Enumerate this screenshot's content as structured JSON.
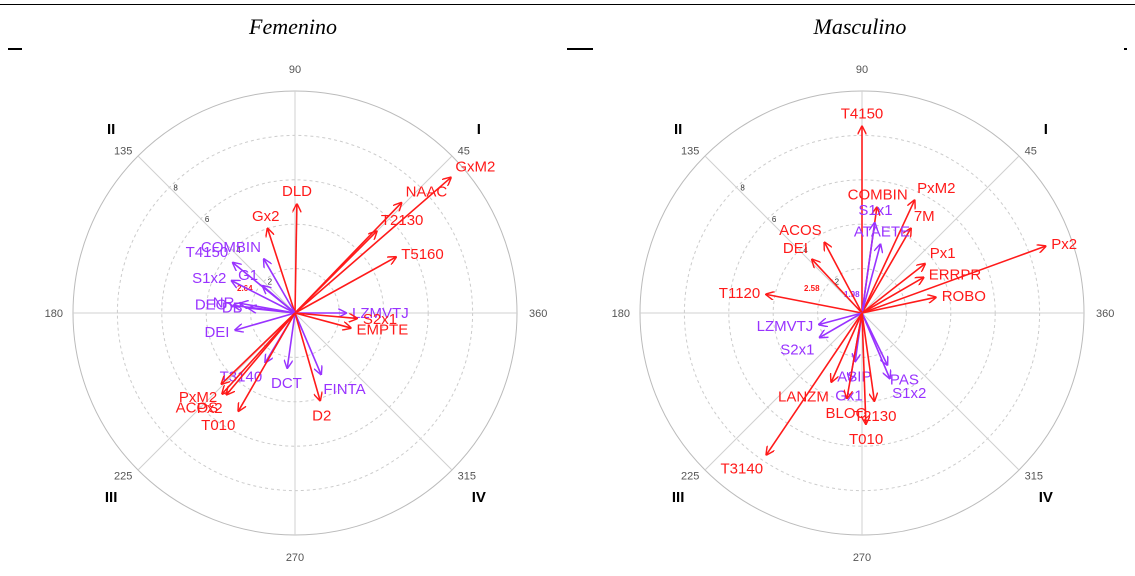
{
  "chart_data": [
    {
      "type": "polar-vector",
      "title": "Femenino",
      "angle_ticks": [
        "90",
        "135",
        "180",
        "225",
        "270",
        "315",
        "360",
        "45"
      ],
      "radial_ticks": [
        "2",
        "4",
        "6",
        "8"
      ],
      "quadrants": [
        "I",
        "II",
        "III",
        "IV"
      ],
      "center_values": [
        "2.64"
      ],
      "series_colors": {
        "red": "#ff1a1a",
        "purple": "#9933ff"
      },
      "vectors": [
        {
          "label": "DLD",
          "angle": 89,
          "length": 4.9,
          "color": "red"
        },
        {
          "label": "GxM2",
          "angle": 41,
          "length": 9.3,
          "color": "red"
        },
        {
          "label": "NAAC",
          "angle": 46,
          "length": 6.9,
          "color": "red"
        },
        {
          "label": "T2130",
          "angle": 45,
          "length": 5.2,
          "color": "red"
        },
        {
          "label": "T5160",
          "angle": 29,
          "length": 5.2,
          "color": "red"
        },
        {
          "label": "Gx2",
          "angle": 108,
          "length": 4.0,
          "color": "red"
        },
        {
          "label": "COMBIN",
          "angle": 120,
          "length": 2.8,
          "color": "purple"
        },
        {
          "label": "T4150",
          "angle": 141,
          "length": 3.6,
          "color": "purple"
        },
        {
          "label": "S1x2",
          "angle": 153,
          "length": 3.2,
          "color": "purple"
        },
        {
          "label": "G1",
          "angle": 140,
          "length": 1.9,
          "color": "purple"
        },
        {
          "label": "DEO",
          "angle": 173,
          "length": 2.8,
          "color": "purple"
        },
        {
          "label": "NR",
          "angle": 170,
          "length": 2.5,
          "color": "purple"
        },
        {
          "label": "DB",
          "angle": 174,
          "length": 2.1,
          "color": "purple"
        },
        {
          "label": "DEI",
          "angle": 196,
          "length": 2.8,
          "color": "purple"
        },
        {
          "label": "T3140",
          "angle": 239,
          "length": 2.6,
          "color": "purple"
        },
        {
          "label": "DCT",
          "angle": 262,
          "length": 2.5,
          "color": "purple"
        },
        {
          "label": "FINTA",
          "angle": 293,
          "length": 3.0,
          "color": "purple"
        },
        {
          "label": "D2",
          "angle": 286,
          "length": 4.1,
          "color": "red"
        },
        {
          "label": "LZMVTJ",
          "angle": 0,
          "length": 2.3,
          "color": "purple"
        },
        {
          "label": "S2x1",
          "angle": 355,
          "length": 2.8,
          "color": "red"
        },
        {
          "label": "EMPTE",
          "angle": 345,
          "length": 2.6,
          "color": "red"
        },
        {
          "label": "PxM2",
          "angle": 224,
          "length": 4.6,
          "color": "red"
        },
        {
          "label": "Px2",
          "angle": 230,
          "length": 4.8,
          "color": "red"
        },
        {
          "label": "ACOS",
          "angle": 228,
          "length": 4.9,
          "color": "red"
        },
        {
          "label": "T010",
          "angle": 240,
          "length": 5.1,
          "color": "red"
        }
      ]
    },
    {
      "type": "polar-vector",
      "title": "Masculino",
      "angle_ticks": [
        "90",
        "135",
        "180",
        "225",
        "270",
        "315",
        "360",
        "45"
      ],
      "radial_ticks": [
        "2",
        "4",
        "6",
        "8"
      ],
      "quadrants": [
        "I",
        "II",
        "III",
        "IV"
      ],
      "center_values": [
        "2.58",
        "1.98"
      ],
      "series_colors": {
        "red": "#ff1a1a",
        "purple": "#9933ff"
      },
      "vectors": [
        {
          "label": "T4150",
          "angle": 90,
          "length": 8.4,
          "color": "red"
        },
        {
          "label": "COMBIN",
          "angle": 82,
          "length": 4.8,
          "color": "red"
        },
        {
          "label": "PxM2",
          "angle": 65,
          "length": 5.6,
          "color": "red"
        },
        {
          "label": "7M",
          "angle": 60,
          "length": 4.4,
          "color": "red"
        },
        {
          "label": "S1x1",
          "angle": 82,
          "length": 4.1,
          "color": "purple"
        },
        {
          "label": "ATAETE",
          "angle": 75,
          "length": 3.2,
          "color": "purple"
        },
        {
          "label": "Px1",
          "angle": 38,
          "length": 3.6,
          "color": "red"
        },
        {
          "label": "Px2",
          "angle": 20,
          "length": 8.8,
          "color": "red"
        },
        {
          "label": "ERRPR",
          "angle": 30,
          "length": 3.2,
          "color": "red"
        },
        {
          "label": "ROBO",
          "angle": 12,
          "length": 3.4,
          "color": "red"
        },
        {
          "label": "ACOS",
          "angle": 118,
          "length": 3.6,
          "color": "red"
        },
        {
          "label": "DEI",
          "angle": 133,
          "length": 3.3,
          "color": "red"
        },
        {
          "label": "T1120",
          "angle": 169,
          "length": 4.4,
          "color": "red"
        },
        {
          "label": "LZMVTJ",
          "angle": 195,
          "length": 2.0,
          "color": "purple"
        },
        {
          "label": "S2x1",
          "angle": 210,
          "length": 2.2,
          "color": "purple"
        },
        {
          "label": "ASIP",
          "angle": 262,
          "length": 2.2,
          "color": "purple"
        },
        {
          "label": "PAS",
          "angle": 296,
          "length": 2.6,
          "color": "purple"
        },
        {
          "label": "S1x2",
          "angle": 293,
          "length": 3.2,
          "color": "purple"
        },
        {
          "label": "Gx1",
          "angle": 260,
          "length": 3.1,
          "color": "purple"
        },
        {
          "label": "LANZM",
          "angle": 246,
          "length": 3.4,
          "color": "red"
        },
        {
          "label": "BLOC",
          "angle": 260,
          "length": 3.9,
          "color": "red"
        },
        {
          "label": "T2130",
          "angle": 278,
          "length": 4.0,
          "color": "red"
        },
        {
          "label": "T010",
          "angle": 272,
          "length": 5.0,
          "color": "red"
        },
        {
          "label": "T3140",
          "angle": 236,
          "length": 7.7,
          "color": "red"
        }
      ]
    }
  ]
}
